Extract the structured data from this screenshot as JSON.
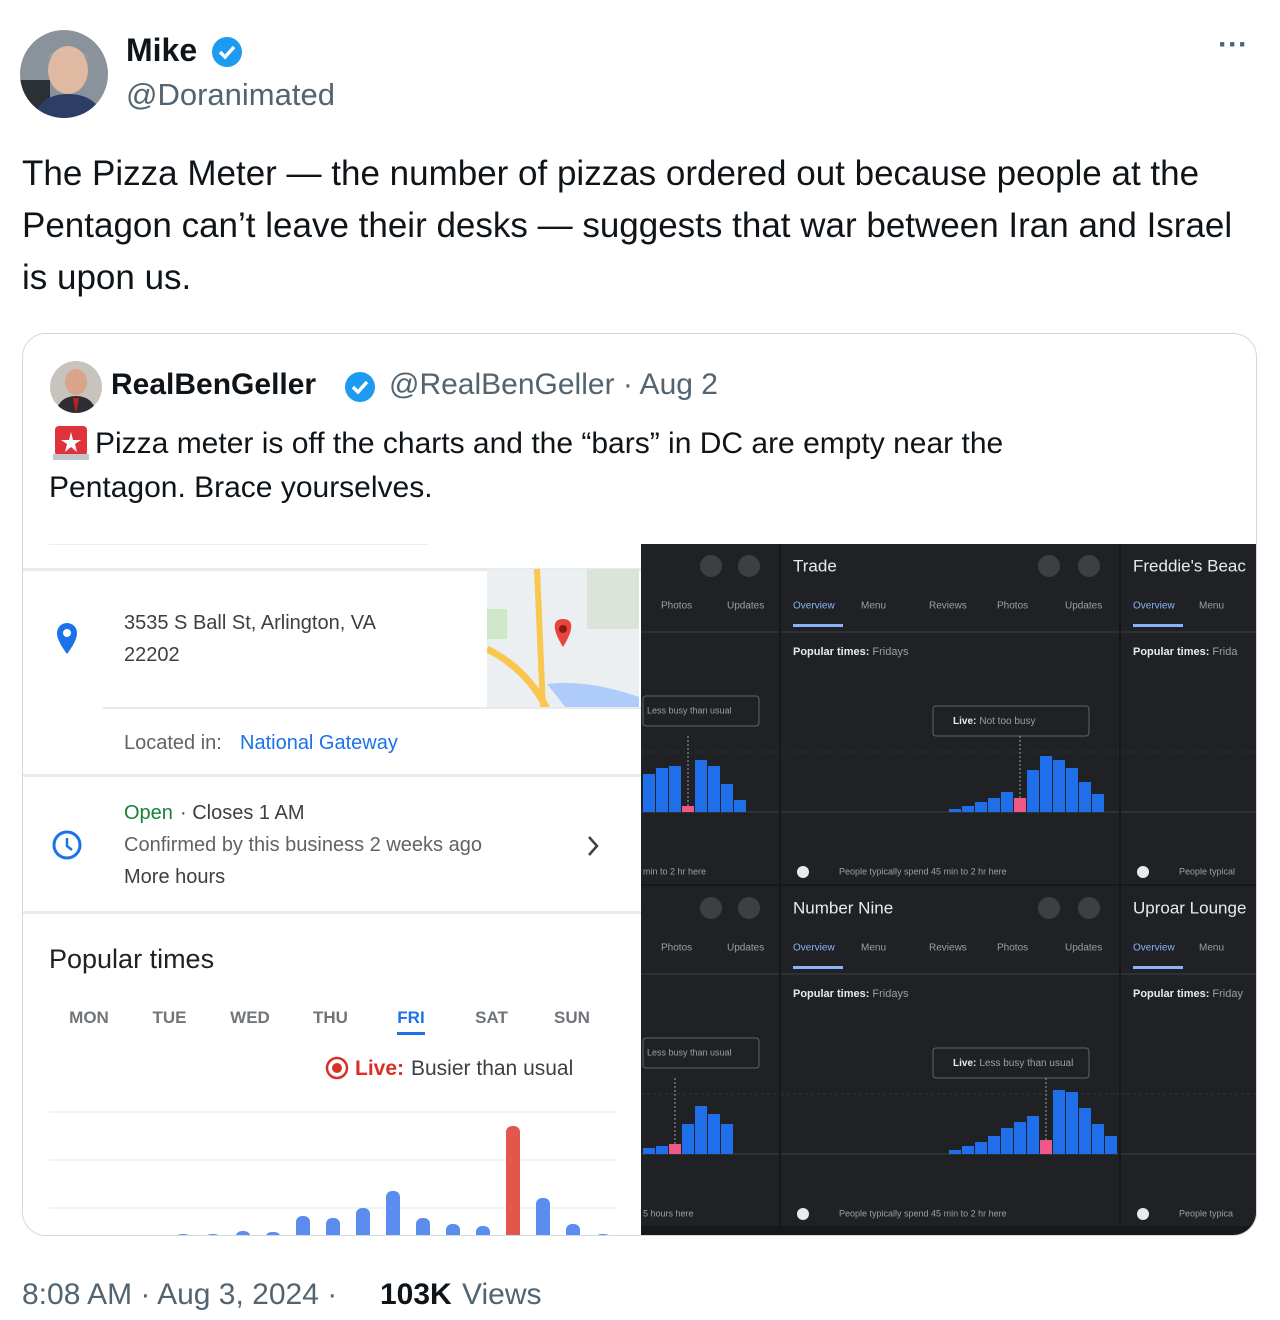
{
  "tweet": {
    "author": {
      "name": "Mike",
      "handle": "@Doranimated"
    },
    "menu": "···",
    "text": "The Pizza Meter — the number of pizzas ordered out because people at the Pentagon can’t leave their desks — suggests that war between Iran and Israel is upon us.",
    "timestamp": "8:08 AM · Aug 3, 2024 ·",
    "views": {
      "count": "103K",
      "label": "Views"
    }
  },
  "quote": {
    "author": {
      "name": "RealBenGeller",
      "handle_line": "@RealBenGeller · Aug 2"
    },
    "text": "Pizza meter is off the charts and the “bars” in DC are empty near the Pentagon. Brace yourselves.",
    "listing": {
      "address": [
        "3535 S Ball St, Arlington, VA",
        "22202"
      ],
      "located_label": "Located in:",
      "located_value": "National Gateway",
      "status": "Open",
      "closes": "· Closes 1 AM",
      "confirmed": "Confirmed by this business 2 weeks ago",
      "more_hours": "More hours",
      "popular_title": "Popular times",
      "days": [
        "MON",
        "TUE",
        "WED",
        "THU",
        "FRI",
        "SAT",
        "SUN"
      ],
      "selected_day": 4,
      "live_label": "Live:",
      "live_text": "Busier than usual",
      "bars": [
        2,
        2,
        5,
        4,
        20,
        18,
        28,
        45,
        18,
        12,
        10,
        110,
        38,
        12,
        2
      ],
      "highlight": 11
    },
    "panels": [
      {
        "tabs": [
          "Photos",
          "Updates"
        ],
        "badge": "Less busy than usual",
        "footer": "min to 2 hr here",
        "bars": [
          38,
          44,
          46,
          6,
          52,
          46,
          28,
          12
        ],
        "highlight": 3
      },
      {
        "title": "Trade",
        "tabs": [
          "Overview",
          "Menu",
          "Reviews",
          "Photos",
          "Updates"
        ],
        "active_tab": 0,
        "popular_label": "Popular times:",
        "popular_day": "Fridays",
        "live_label": "Live:",
        "live_text": "Not too busy",
        "footer": "People typically spend 45 min to 2 hr here",
        "bars": [
          3,
          6,
          10,
          14,
          20,
          14,
          42,
          56,
          52,
          44,
          30,
          18
        ],
        "highlight": 5
      },
      {
        "title": "Freddie's Beac",
        "tabs": [
          "Overview",
          "Menu"
        ],
        "active_tab": 0,
        "popular_label": "Popular times:",
        "popular_day": "Frida",
        "footer": "People typical"
      },
      {
        "tabs": [
          "Photos",
          "Updates"
        ],
        "badge": "Less busy than usual",
        "footer": "5 hours here",
        "bars": [
          6,
          8,
          10,
          30,
          48,
          40,
          30
        ],
        "highlight": 2
      },
      {
        "title": "Number Nine",
        "tabs": [
          "Overview",
          "Menu",
          "Reviews",
          "Photos",
          "Updates"
        ],
        "active_tab": 0,
        "popular_label": "Popular times:",
        "popular_day": "Fridays",
        "live_label": "Live:",
        "live_text": "Less busy than usual",
        "footer": "People typically spend 45 min to 2 hr here",
        "bars": [
          4,
          8,
          12,
          18,
          26,
          32,
          38,
          14,
          64,
          62,
          46,
          30,
          18
        ],
        "highlight": 7
      },
      {
        "title": "Uproar Lounge",
        "tabs": [
          "Overview",
          "Menu"
        ],
        "active_tab": 0,
        "popular_label": "Popular times:",
        "popular_day": "Friday",
        "footer": "People typica"
      }
    ]
  }
}
